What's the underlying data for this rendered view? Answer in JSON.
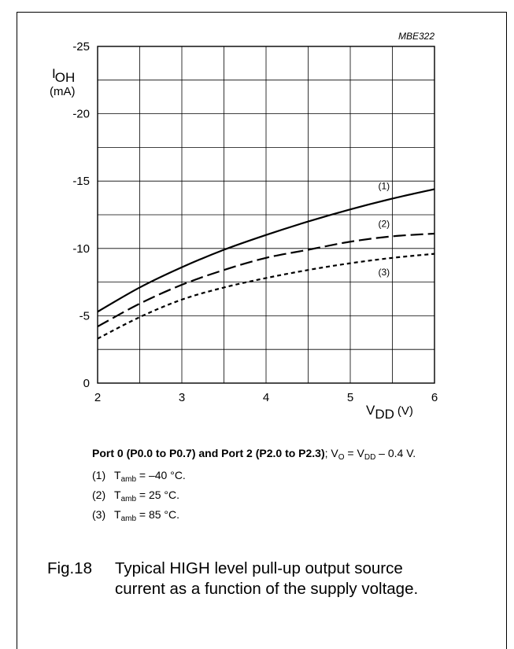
{
  "chart_data": {
    "type": "line",
    "tag": "MBE322",
    "ylabel_symbol": "I",
    "ylabel_sub": "OH",
    "ylabel_unit": "(mA)",
    "xlabel_symbol": "V",
    "xlabel_sub": "DD",
    "xlabel_unit": "(V)",
    "xlim": [
      2,
      6
    ],
    "ylim": [
      0,
      -25
    ],
    "x_ticks": [
      2,
      3,
      4,
      5,
      6
    ],
    "x_tick_labels": [
      "2",
      "3",
      "4",
      "5",
      "6"
    ],
    "y_ticks": [
      0,
      -5,
      -10,
      -15,
      -20,
      -25
    ],
    "y_tick_labels": [
      "0",
      "-5",
      "-10",
      "-15",
      "-20",
      "-25"
    ],
    "x_minor": 0.5,
    "y_minor": 2.5,
    "grid": true,
    "series": [
      {
        "name": "(1)",
        "style": "solid",
        "x": [
          2.0,
          2.5,
          3.0,
          3.5,
          4.0,
          4.5,
          5.0,
          5.5,
          6.0
        ],
        "y": [
          -5.3,
          -7.1,
          -8.6,
          -9.9,
          -11.0,
          -12.0,
          -12.9,
          -13.7,
          -14.4
        ]
      },
      {
        "name": "(2)",
        "style": "dashed",
        "x": [
          2.0,
          2.5,
          3.0,
          3.5,
          4.0,
          4.5,
          5.0,
          5.5,
          6.0
        ],
        "y": [
          -4.2,
          -5.9,
          -7.3,
          -8.4,
          -9.3,
          -9.9,
          -10.5,
          -10.9,
          -11.1
        ]
      },
      {
        "name": "(3)",
        "style": "dotted",
        "x": [
          2.0,
          2.5,
          3.0,
          3.5,
          4.0,
          4.5,
          5.0,
          5.5,
          6.0
        ],
        "y": [
          -3.3,
          -4.9,
          -6.2,
          -7.1,
          -7.8,
          -8.4,
          -8.9,
          -9.3,
          -9.6
        ]
      }
    ],
    "series_labels": [
      {
        "text": "(1)",
        "x": 5.4,
        "y": -14.4
      },
      {
        "text": "(2)",
        "x": 5.4,
        "y": -11.6
      },
      {
        "text": "(3)",
        "x": 5.4,
        "y": -8.0
      }
    ]
  },
  "caption": {
    "bold": "Port 0 (P0.0 to P0.7) and Port 2 (P2.0 to P2.3)",
    "rest_pre": "; V",
    "sub_o": "O",
    "rest_mid": " = V",
    "sub_dd": "DD",
    "rest_post": " – 0.4 V."
  },
  "notes": [
    {
      "num": "(1)",
      "t": "T",
      "sub": "amb",
      "text": " = –40 °C."
    },
    {
      "num": "(2)",
      "t": "T",
      "sub": "amb",
      "text": " = 25 °C."
    },
    {
      "num": "(3)",
      "t": "T",
      "sub": "amb",
      "text": " = 85 °C."
    }
  ],
  "figure": {
    "number": "Fig.18",
    "title_line1": "Typical HIGH level pull-up output source",
    "title_line2": "current as a function of the supply voltage."
  }
}
